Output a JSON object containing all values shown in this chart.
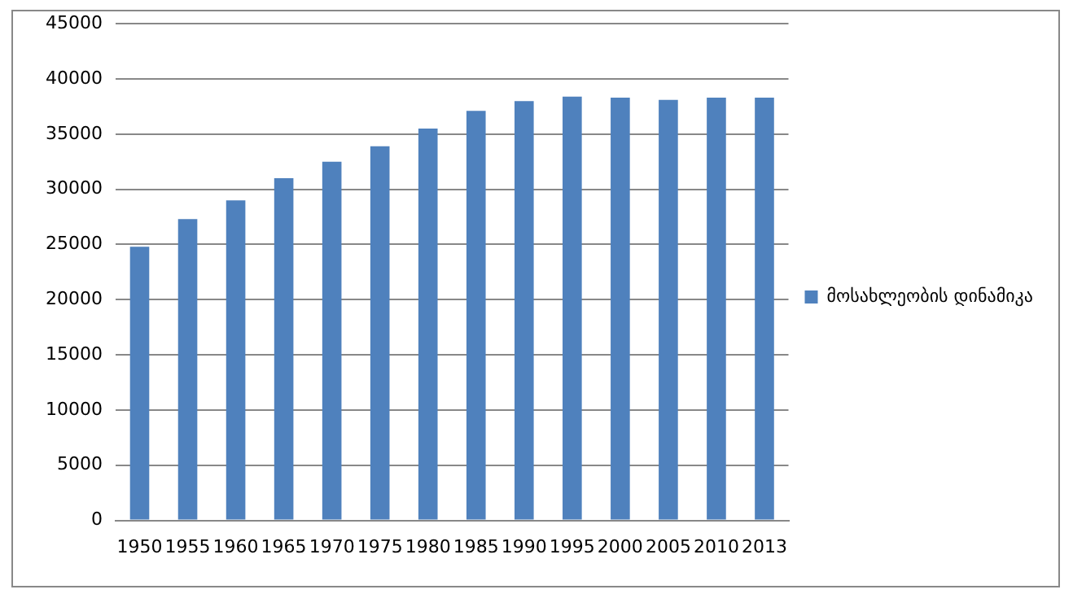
{
  "chart_data": {
    "type": "bar",
    "categories": [
      "1950",
      "1955",
      "1960",
      "1965",
      "1970",
      "1975",
      "1980",
      "1985",
      "1990",
      "1995",
      "2000",
      "2005",
      "2010",
      "2013"
    ],
    "series": [
      {
        "name": "მოსახლეობის დინამიკა",
        "color": "#4f81bd",
        "values": [
          24800,
          27300,
          29000,
          31000,
          32500,
          33900,
          35500,
          37100,
          38000,
          38400,
          38300,
          38100,
          38300,
          38300
        ]
      }
    ],
    "ylim": [
      0,
      45000
    ],
    "yticks": [
      0,
      5000,
      10000,
      15000,
      20000,
      25000,
      30000,
      35000,
      40000,
      45000
    ],
    "grid": "y",
    "legend": "right"
  }
}
